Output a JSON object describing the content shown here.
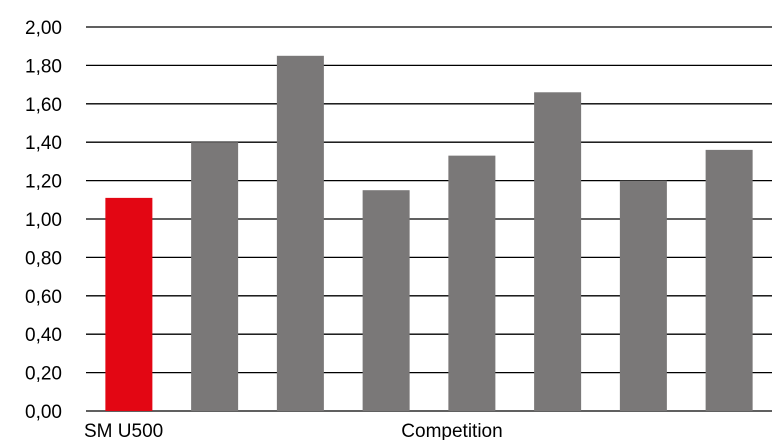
{
  "chart_data": {
    "type": "bar",
    "title": "",
    "xlabel": "",
    "ylabel": "",
    "ylim": [
      0,
      2
    ],
    "yticks": [
      "0,00",
      "0,20",
      "0,40",
      "0,60",
      "0,80",
      "1,00",
      "1,20",
      "1,40",
      "1,60",
      "1,80",
      "2,00"
    ],
    "grid": true,
    "category_labels": [
      "SM U500",
      "Competition"
    ],
    "bars": [
      {
        "group": "SM U500",
        "value": 1.11,
        "color": "#e30613"
      },
      {
        "group": "Competition",
        "value": 1.4,
        "color": "#7a7878"
      },
      {
        "group": "Competition",
        "value": 1.85,
        "color": "#7a7878"
      },
      {
        "group": "Competition",
        "value": 1.15,
        "color": "#7a7878"
      },
      {
        "group": "Competition",
        "value": 1.33,
        "color": "#7a7878"
      },
      {
        "group": "Competition",
        "value": 1.66,
        "color": "#7a7878"
      },
      {
        "group": "Competition",
        "value": 1.2,
        "color": "#7a7878"
      },
      {
        "group": "Competition",
        "value": 1.36,
        "color": "#7a7878"
      }
    ]
  }
}
